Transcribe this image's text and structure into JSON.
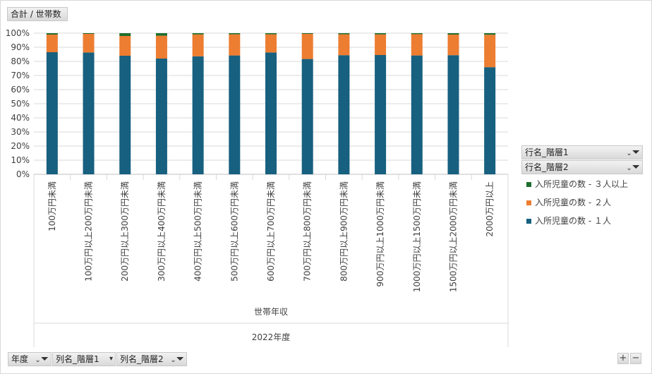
{
  "value_field": "合計 / 世帯数",
  "filters": {
    "row": [
      "行名_階層1",
      "行名_階層2"
    ],
    "bottom": [
      "年度",
      "列名_階層1",
      "列名_階層2"
    ]
  },
  "buttons": {
    "expand": "+",
    "collapse": "−"
  },
  "icons": {
    "filter": "filter-icon",
    "dropdown": "dropdown-arrow-icon"
  },
  "colors": {
    "one": "#17607f",
    "two": "#ed7d31",
    "three": "#1e6e2e"
  },
  "chart_data": {
    "type": "bar",
    "stacked": "percent",
    "xlabel": "世帯年収",
    "group_label": "2022年度",
    "ylim": [
      0,
      100
    ],
    "yticks": [
      "0%",
      "10%",
      "20%",
      "30%",
      "40%",
      "50%",
      "60%",
      "70%",
      "80%",
      "90%",
      "100%"
    ],
    "grid": true,
    "legend_position": "right",
    "categories": [
      "100万円未満",
      "100万円以上200万円未満",
      "200万円以上300万円未満",
      "300万円以上400万円未満",
      "400万円以上500万円未満",
      "500万円以上600万円未満",
      "600万円以上700万円未満",
      "700万円以上800万円未満",
      "800万円以上900万円未満",
      "900万円以上1000万円未満",
      "1000万円以上1500万円未満",
      "1500万円以上2000万円未満",
      "2000万円以上"
    ],
    "series": [
      {
        "name": "入所児童の数 - １人",
        "color": "#17607f",
        "values": [
          86.5,
          86.3,
          84.0,
          82.0,
          83.6,
          84.2,
          86.3,
          81.7,
          84.4,
          84.5,
          84.2,
          84.4,
          75.9
        ]
      },
      {
        "name": "入所児童の数 - ２人",
        "color": "#ed7d31",
        "values": [
          12.5,
          13.2,
          14.0,
          16.2,
          15.5,
          15.0,
          12.9,
          17.8,
          14.8,
          14.6,
          15.1,
          14.6,
          23.0
        ]
      },
      {
        "name": "入所児童の数 - ３人以上",
        "color": "#1e6e2e",
        "values": [
          1.0,
          0.5,
          2.0,
          1.8,
          0.9,
          0.8,
          0.8,
          0.5,
          0.8,
          0.9,
          0.7,
          1.0,
          1.1
        ]
      }
    ]
  }
}
